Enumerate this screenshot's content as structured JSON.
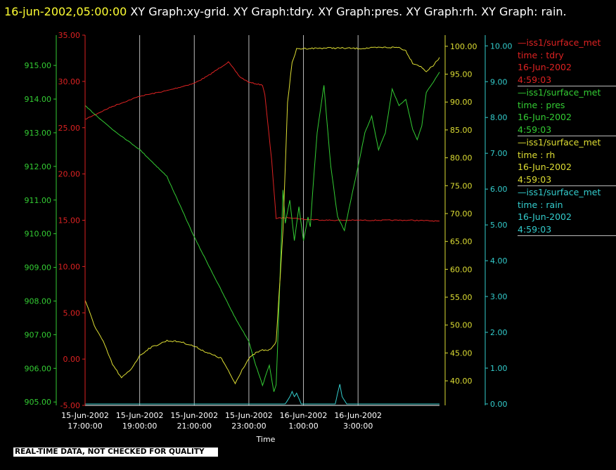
{
  "header": {
    "timestamp": "16-jun-2002,05:00:00",
    "rest": " XY Graph:xy-grid.  XY Graph:tdry.  XY Graph:pres.  XY Graph:rh.  XY Graph: rain."
  },
  "colors": {
    "tdry": "#dd2222",
    "pres": "#33cc33",
    "rh": "#dddd33",
    "rain": "#33cccc",
    "grid": "#bbbbbb",
    "axis": "#ffffff",
    "header_timestamp": "#ffff33"
  },
  "legend": [
    {
      "key": "tdry",
      "name": "—iss1/surface_met",
      "field": "time : tdry",
      "date": "16-Jun-2002",
      "time": "4:59:03"
    },
    {
      "key": "pres",
      "name": "—iss1/surface_met",
      "field": "time : pres",
      "date": "16-Jun-2002",
      "time": "4:59:03"
    },
    {
      "key": "rh",
      "name": "—iss1/surface_met",
      "field": "time : rh",
      "date": "16-Jun-2002",
      "time": "4:59:03"
    },
    {
      "key": "rain",
      "name": "—iss1/surface_met",
      "field": "time : rain",
      "date": "16-Jun-2002",
      "time": "4:59:03"
    }
  ],
  "disclaimer": "REAL-TIME DATA, NOT CHECKED FOR QUALITY",
  "chart_data": {
    "type": "line",
    "xlabel": "Time",
    "x_ticks": [
      {
        "t": "15-Jun-2002 16:00",
        "date": "15-Jun-2002",
        "time": "17:00:00"
      },
      {
        "t": "15-Jun-2002 18:00",
        "date": "15-Jun-2002",
        "time": "19:00:00"
      },
      {
        "t": "15-Jun-2002 20:00",
        "date": "15-Jun-2002",
        "time": "21:00:00"
      },
      {
        "t": "15-Jun-2002 22:00",
        "date": "15-Jun-2002",
        "time": "23:00:00"
      },
      {
        "t": "16-Jun-2002 00:00",
        "date": "16-Jun-2002",
        "time": "1:00:00"
      },
      {
        "t": "16-Jun-2002 02:00",
        "date": "16-Jun-2002",
        "time": "3:00:00"
      }
    ],
    "xlim": [
      "15-Jun-2002 16:00",
      "16-Jun-2002 04:59"
    ],
    "grid": true,
    "axes": {
      "pres": {
        "side": "left-outer",
        "ylim": [
          904.9,
          915.9
        ],
        "ticks": [
          "905.00",
          "906.00",
          "907.00",
          "908.00",
          "909.00",
          "910.00",
          "911.00",
          "912.00",
          "913.00",
          "914.00",
          "915.00"
        ]
      },
      "tdry": {
        "side": "left-inner",
        "ylim": [
          -5,
          35
        ],
        "ticks": [
          "-5.00",
          "0.00",
          "5.00",
          "10.00",
          "15.00",
          "20.00",
          "25.00",
          "30.00",
          "35.00"
        ]
      },
      "rh": {
        "side": "right-inner",
        "ylim": [
          35.6,
          102.0
        ],
        "ticks": [
          "40.00",
          "45.00",
          "50.00",
          "55.00",
          "60.00",
          "65.00",
          "70.00",
          "75.00",
          "80.00",
          "85.00",
          "90.00",
          "95.00",
          "100.00"
        ]
      },
      "rain": {
        "side": "right-outer",
        "ylim": [
          -0.04,
          10.3
        ],
        "ticks": [
          "0.00",
          "1.00",
          "2.00",
          "3.00",
          "4.00",
          "5.00",
          "6.00",
          "7.00",
          "8.00",
          "9.00",
          "10.00"
        ]
      }
    },
    "series": [
      {
        "key": "tdry",
        "axis": "tdry",
        "x": [
          "15-Jun-2002 16:00",
          "15-Jun-2002 17:00",
          "15-Jun-2002 18:00",
          "15-Jun-2002 19:00",
          "15-Jun-2002 20:00",
          "15-Jun-2002 20:30",
          "15-Jun-2002 21:15",
          "15-Jun-2002 21:40",
          "15-Jun-2002 22:00",
          "15-Jun-2002 22:30",
          "15-Jun-2002 22:35",
          "15-Jun-2002 22:50",
          "15-Jun-2002 23:00",
          "15-Jun-2002 23:30",
          "16-Jun-2002 00:00",
          "16-Jun-2002 01:00",
          "16-Jun-2002 02:00",
          "16-Jun-2002 03:00",
          "16-Jun-2002 04:00",
          "16-Jun-2002 04:59"
        ],
        "y": [
          25.9,
          27.3,
          28.4,
          29.0,
          29.8,
          30.6,
          32.1,
          30.5,
          29.9,
          29.6,
          28.6,
          21.5,
          15.2,
          15.3,
          15.1,
          15.0,
          15.0,
          15.0,
          15.0,
          14.9
        ]
      },
      {
        "key": "pres",
        "axis": "pres",
        "x": [
          "15-Jun-2002 16:00",
          "15-Jun-2002 17:00",
          "15-Jun-2002 18:00",
          "15-Jun-2002 19:00",
          "15-Jun-2002 20:00",
          "15-Jun-2002 21:00",
          "15-Jun-2002 21:30",
          "15-Jun-2002 22:00",
          "15-Jun-2002 22:15",
          "15-Jun-2002 22:30",
          "15-Jun-2002 22:45",
          "15-Jun-2002 22:55",
          "15-Jun-2002 23:00",
          "15-Jun-2002 23:08",
          "15-Jun-2002 23:15",
          "15-Jun-2002 23:20",
          "15-Jun-2002 23:30",
          "15-Jun-2002 23:40",
          "15-Jun-2002 23:50",
          "16-Jun-2002 00:00",
          "16-Jun-2002 00:10",
          "16-Jun-2002 00:15",
          "16-Jun-2002 00:20",
          "16-Jun-2002 00:30",
          "16-Jun-2002 00:45",
          "16-Jun-2002 01:00",
          "16-Jun-2002 01:15",
          "16-Jun-2002 01:30",
          "16-Jun-2002 02:00",
          "16-Jun-2002 02:15",
          "16-Jun-2002 02:30",
          "16-Jun-2002 02:45",
          "16-Jun-2002 03:00",
          "16-Jun-2002 03:15",
          "16-Jun-2002 03:30",
          "16-Jun-2002 03:45",
          "16-Jun-2002 04:00",
          "16-Jun-2002 04:10",
          "16-Jun-2002 04:20",
          "16-Jun-2002 04:30",
          "16-Jun-2002 04:45",
          "16-Jun-2002 04:59"
        ],
        "y": [
          913.8,
          913.1,
          912.5,
          911.7,
          909.9,
          908.3,
          907.5,
          906.8,
          906.1,
          905.5,
          906.1,
          905.3,
          905.5,
          908.5,
          911.3,
          910.3,
          911.0,
          909.8,
          910.8,
          909.8,
          910.5,
          910.2,
          911.2,
          913.0,
          914.4,
          912.0,
          910.5,
          910.1,
          912.0,
          913.0,
          913.5,
          912.5,
          913.0,
          914.3,
          913.8,
          914.0,
          913.1,
          912.8,
          913.2,
          914.2,
          914.5,
          914.8
        ]
      },
      {
        "key": "rh",
        "axis": "rh",
        "x": [
          "15-Jun-2002 16:00",
          "15-Jun-2002 16:20",
          "15-Jun-2002 16:40",
          "15-Jun-2002 17:00",
          "15-Jun-2002 17:20",
          "15-Jun-2002 17:40",
          "15-Jun-2002 18:00",
          "15-Jun-2002 18:20",
          "15-Jun-2002 18:40",
          "15-Jun-2002 19:00",
          "15-Jun-2002 19:30",
          "15-Jun-2002 20:00",
          "15-Jun-2002 20:30",
          "15-Jun-2002 21:00",
          "15-Jun-2002 21:30",
          "15-Jun-2002 21:45",
          "15-Jun-2002 22:00",
          "15-Jun-2002 22:15",
          "15-Jun-2002 22:30",
          "15-Jun-2002 22:45",
          "15-Jun-2002 23:00",
          "15-Jun-2002 23:15",
          "15-Jun-2002 23:25",
          "15-Jun-2002 23:35",
          "15-Jun-2002 23:45",
          "16-Jun-2002 00:00",
          "16-Jun-2002 01:00",
          "16-Jun-2002 02:00",
          "16-Jun-2002 03:00",
          "16-Jun-2002 03:30",
          "16-Jun-2002 03:45",
          "16-Jun-2002 04:00",
          "16-Jun-2002 04:15",
          "16-Jun-2002 04:30",
          "16-Jun-2002 04:45",
          "16-Jun-2002 04:59"
        ],
        "y": [
          54.5,
          50.0,
          47.0,
          43.0,
          40.5,
          42.0,
          44.5,
          45.8,
          46.5,
          47.2,
          47.0,
          46.2,
          45.0,
          44.0,
          39.5,
          42.0,
          44.0,
          45.0,
          45.5,
          45.5,
          47.0,
          67.0,
          90.0,
          97.0,
          99.5,
          99.6,
          99.7,
          99.6,
          99.8,
          99.8,
          99.2,
          97.0,
          96.5,
          95.5,
          96.5,
          98.0
        ]
      },
      {
        "key": "rain",
        "axis": "rain",
        "x": [
          "15-Jun-2002 16:00",
          "15-Jun-2002 23:20",
          "15-Jun-2002 23:30",
          "15-Jun-2002 23:35",
          "15-Jun-2002 23:40",
          "15-Jun-2002 23:45",
          "15-Jun-2002 23:55",
          "16-Jun-2002 01:10",
          "16-Jun-2002 01:15",
          "16-Jun-2002 01:20",
          "16-Jun-2002 01:25",
          "16-Jun-2002 01:35",
          "16-Jun-2002 04:59"
        ],
        "y": [
          0.0,
          0.0,
          0.2,
          0.35,
          0.2,
          0.3,
          0.0,
          0.0,
          0.3,
          0.55,
          0.2,
          0.0,
          0.0
        ]
      }
    ]
  }
}
